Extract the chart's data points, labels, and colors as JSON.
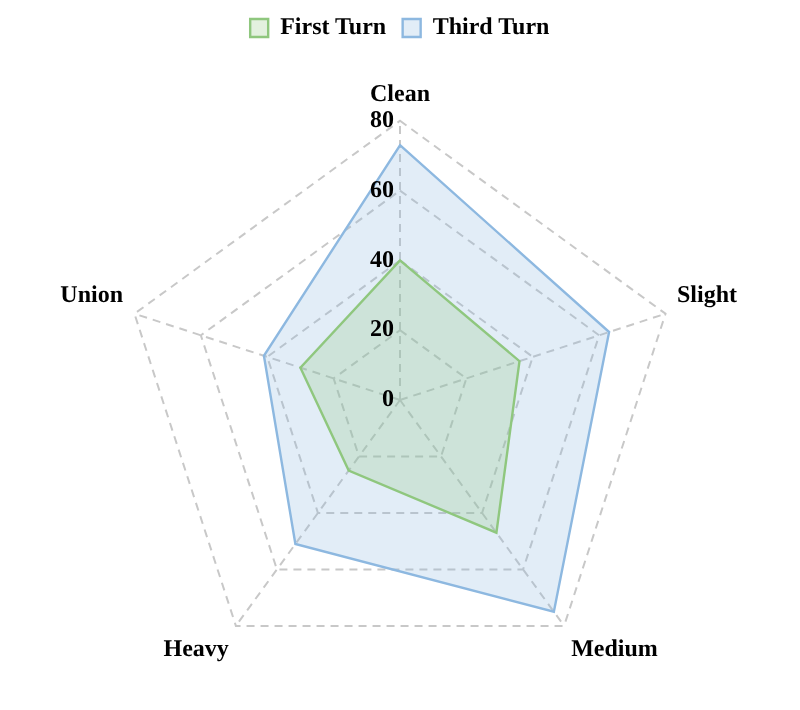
{
  "chart_data": {
    "type": "radar",
    "categories": [
      "Clean",
      "Slight",
      "Medium",
      "Heavy",
      "Union"
    ],
    "series": [
      {
        "name": "First Turn",
        "color": "#8fc77e",
        "values": [
          40,
          36,
          47,
          25,
          30
        ]
      },
      {
        "name": "Third Turn",
        "color": "#8db8e0",
        "values": [
          73,
          63,
          75,
          51,
          41
        ]
      }
    ],
    "ylim": [
      0,
      80
    ],
    "yticks": [
      0,
      20,
      40,
      60,
      80
    ],
    "grid": true,
    "legend": "top",
    "marker": "none",
    "line_style": "solid"
  }
}
